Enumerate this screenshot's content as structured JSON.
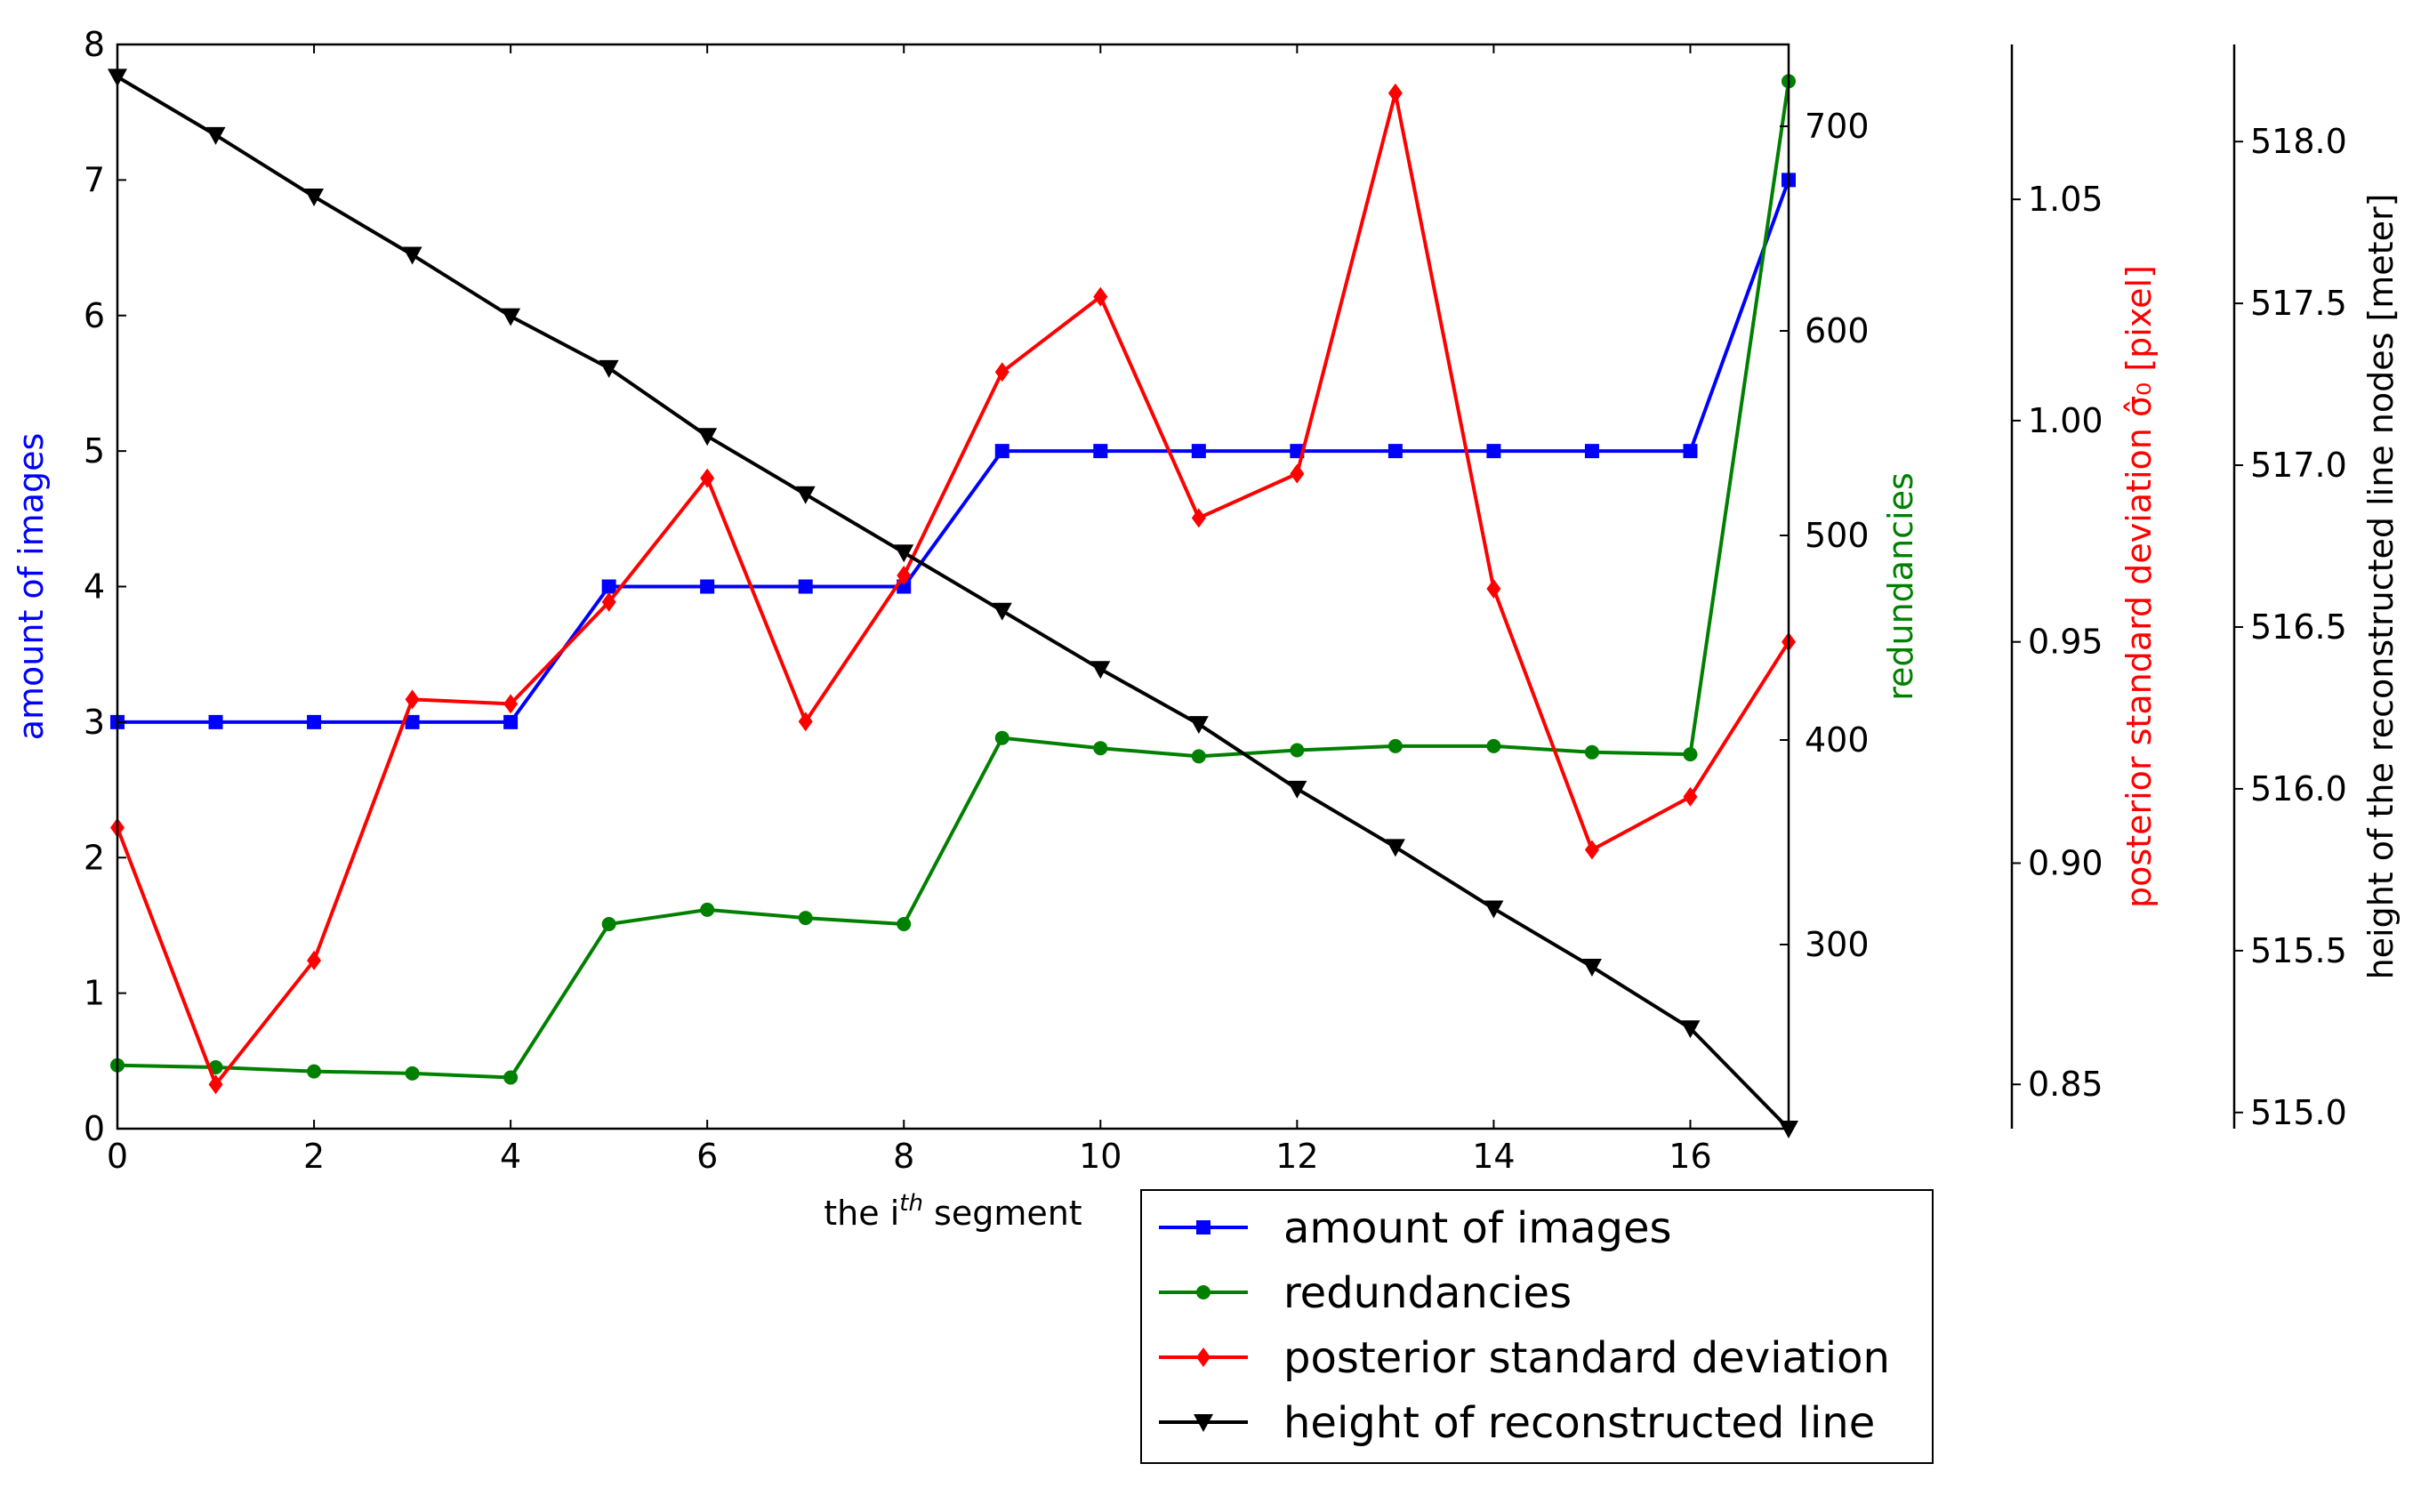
{
  "chart_data": {
    "type": "line",
    "x": [
      0,
      1,
      2,
      3,
      4,
      5,
      6,
      7,
      8,
      9,
      10,
      11,
      12,
      13,
      14,
      15,
      16,
      17
    ],
    "xlim": [
      0,
      17
    ],
    "xticks": [
      0,
      2,
      4,
      6,
      8,
      10,
      12,
      14,
      16
    ],
    "xlabel": {
      "base": "the i",
      "sup": "th",
      "rest": " segment"
    },
    "grid": false,
    "legend_position": "bottom-right, below plot",
    "axes": [
      {
        "id": "left",
        "label": "amount of images",
        "color": "#0000ff",
        "label_color": "#0000ff",
        "ylim": [
          0,
          8
        ],
        "ticks": [
          0,
          1,
          2,
          3,
          4,
          5,
          6,
          7,
          8
        ]
      },
      {
        "id": "right1",
        "label": "redundancies",
        "color": "#008000",
        "label_color": "#008000",
        "ylim": [
          210,
          740
        ],
        "ticks": [
          300,
          400,
          500,
          600,
          700
        ]
      },
      {
        "id": "right2",
        "label": "posterior standard deviation σ̂₀ [pixel]",
        "color": "#ff0000",
        "label_color": "#ff0000",
        "ylim": [
          0.84,
          1.085
        ],
        "ticks": [
          0.85,
          0.9,
          0.95,
          1.0,
          1.05
        ],
        "tick_format": 2
      },
      {
        "id": "right3",
        "label": "height of the reconstructed line nodes [meter]",
        "color": "#000000",
        "label_color": "#000000",
        "ylim": [
          514.95,
          518.3
        ],
        "ticks": [
          515.0,
          515.5,
          516.0,
          516.5,
          517.0,
          517.5,
          518.0
        ],
        "tick_format": 1
      }
    ],
    "series": [
      {
        "name": "amount of images",
        "axis": "left",
        "color": "#0000ff",
        "marker": "square",
        "values": [
          3,
          3,
          3,
          3,
          3,
          4,
          4,
          4,
          4,
          5,
          5,
          5,
          5,
          5,
          5,
          5,
          5,
          7
        ]
      },
      {
        "name": "redundancies",
        "axis": "right1",
        "color": "#008000",
        "marker": "circle",
        "values": [
          241,
          240,
          238,
          237,
          235,
          310,
          317,
          313,
          310,
          401,
          396,
          392,
          395,
          397,
          397,
          394,
          393,
          722
        ]
      },
      {
        "name": "posterior standard deviation",
        "axis": "right2",
        "color": "#ff0000",
        "marker": "diamond",
        "values": [
          0.908,
          0.85,
          0.878,
          0.937,
          0.936,
          0.959,
          0.987,
          0.932,
          0.965,
          1.011,
          1.028,
          0.978,
          0.988,
          1.074,
          0.962,
          0.903,
          0.915,
          0.95
        ]
      },
      {
        "name": "height of reconstructed line",
        "axis": "right3",
        "color": "#000000",
        "marker": "triangle-down",
        "values": [
          518.2,
          518.02,
          517.83,
          517.65,
          517.46,
          517.3,
          517.09,
          516.91,
          516.73,
          516.55,
          516.37,
          516.2,
          516.0,
          515.82,
          515.63,
          515.45,
          515.26,
          514.95
        ]
      }
    ]
  }
}
